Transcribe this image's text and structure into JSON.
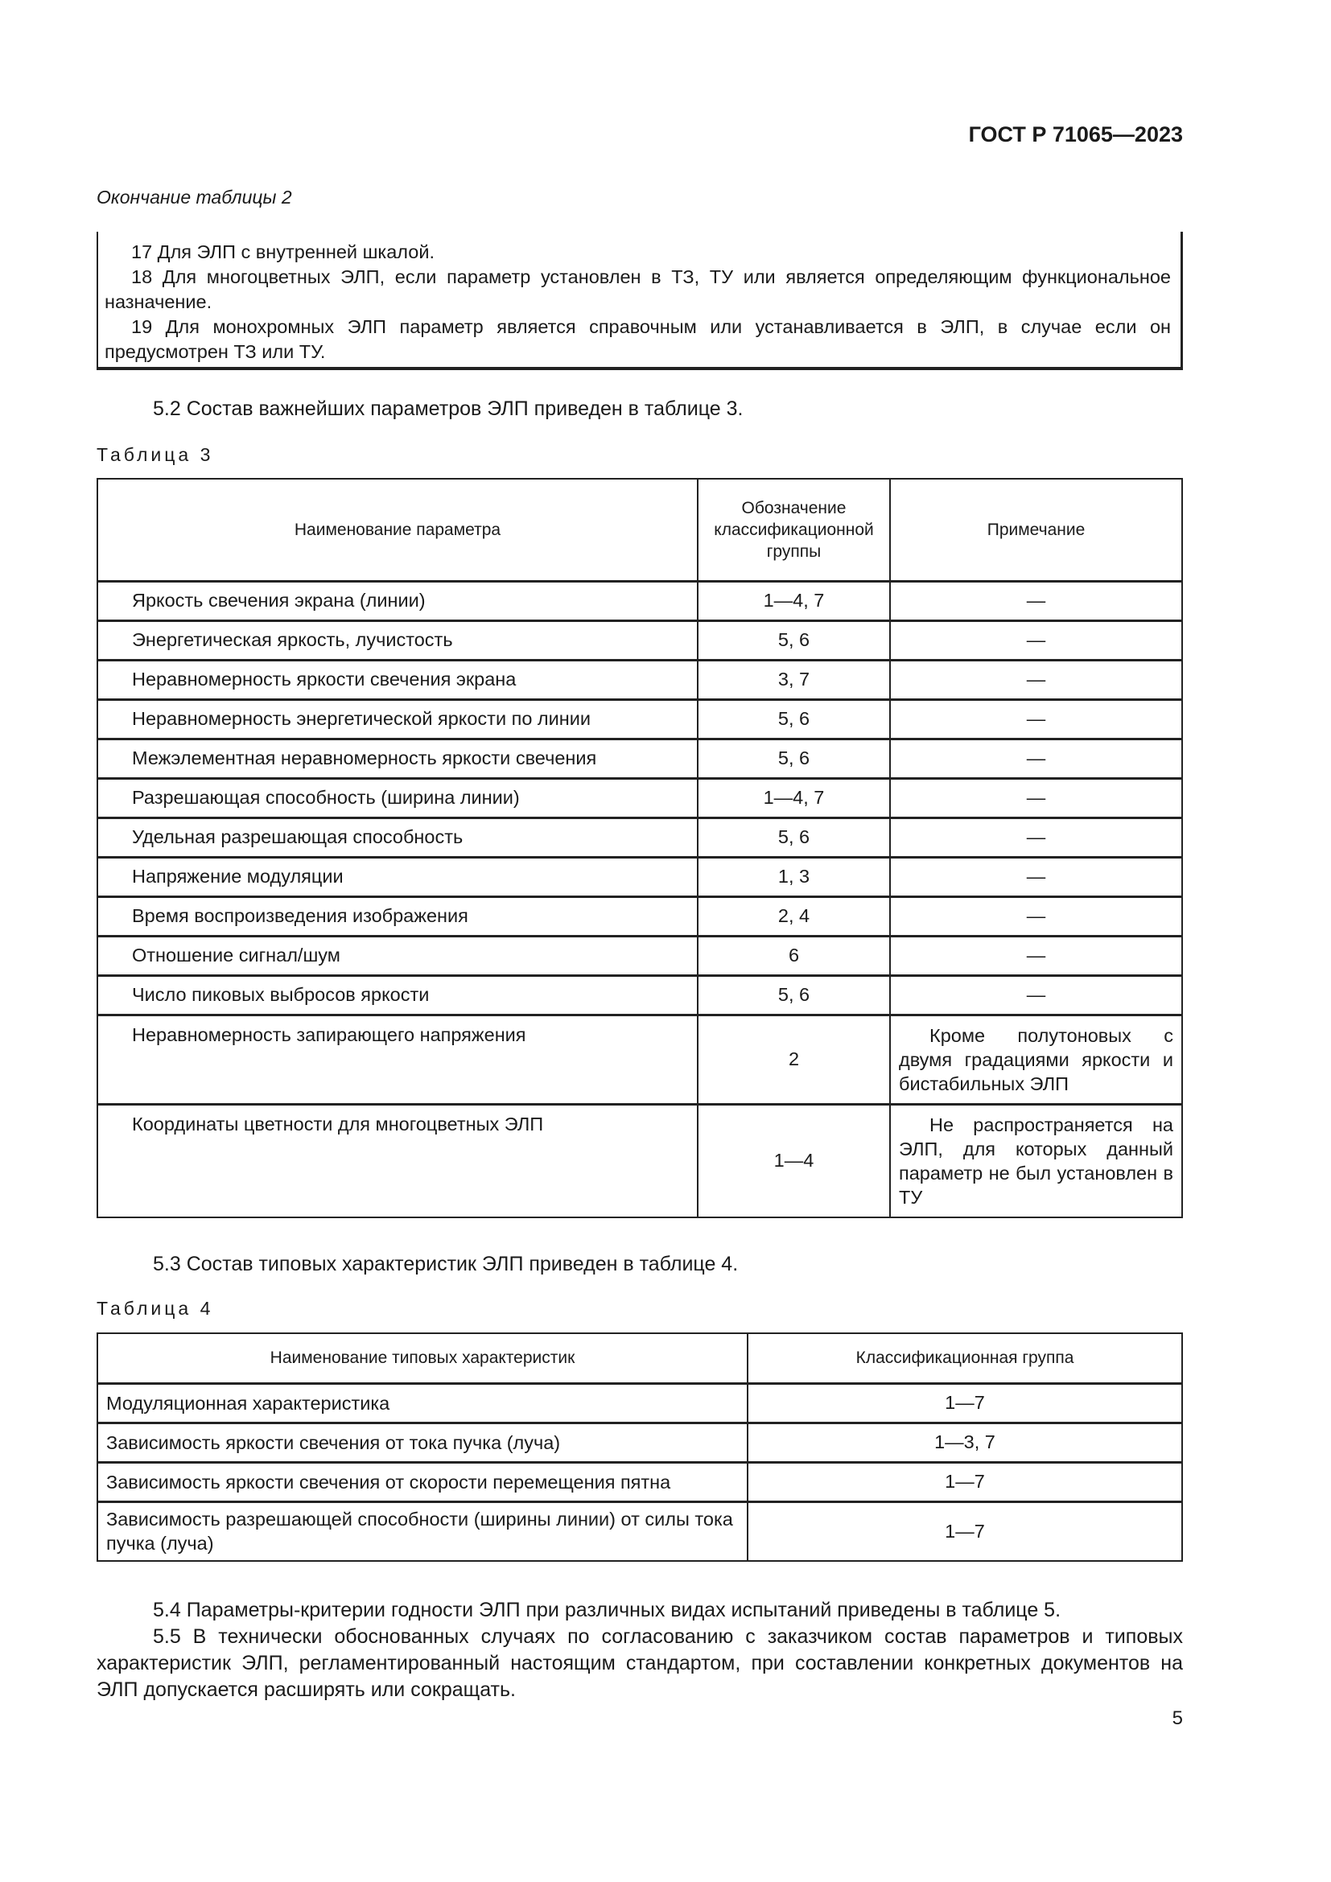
{
  "header": {
    "doc_id": "ГОСТ Р 71065—2023"
  },
  "continuation": "Окончание таблицы 2",
  "table2_notes": [
    "17 Для ЭЛП с внутренней шкалой.",
    "18 Для многоцветных ЭЛП, если параметр установлен в ТЗ, ТУ или является определяющим функциональное назначение.",
    "19 Для монохромных ЭЛП параметр является справочным или устанавливается в ЭЛП, в случае если он предусмотрен ТЗ или ТУ."
  ],
  "p52": "5.2 Состав важнейших параметров ЭЛП приведен в таблице 3.",
  "table3": {
    "caption": "Таблица 3",
    "headers": [
      "Наименование параметра",
      "Обозначение классификационной группы",
      "Примечание"
    ],
    "rows": [
      [
        "Яркость свечения экрана (линии)",
        "1—4, 7",
        "—"
      ],
      [
        "Энергетическая яркость, лучистость",
        "5, 6",
        "—"
      ],
      [
        "Неравномерность яркости свечения экрана",
        "3, 7",
        "—"
      ],
      [
        "Неравномерность энергетической яркости по линии",
        "5, 6",
        "—"
      ],
      [
        "Межэлементная неравномерность яркости свечения",
        "5, 6",
        "—"
      ],
      [
        "Разрешающая способность (ширина линии)",
        "1—4, 7",
        "—"
      ],
      [
        "Удельная разрешающая способность",
        "5, 6",
        "—"
      ],
      [
        "Напряжение модуляции",
        "1, 3",
        "—"
      ],
      [
        "Время воспроизведения изображения",
        "2, 4",
        "—"
      ],
      [
        "Отношение сигнал/шум",
        "6",
        "—"
      ],
      [
        "Число пиковых выбросов яркости",
        "5, 6",
        "—"
      ],
      [
        "Неравномерность запирающего напряжения",
        "2",
        "Кроме полутоновых с двумя градациями яркости и бистабильных ЭЛП"
      ],
      [
        "Координаты цветности для многоцветных ЭЛП",
        "1—4",
        "Не распространяется на ЭЛП, для которых данный параметр не был установлен в ТУ"
      ]
    ]
  },
  "p53": "5.3 Состав типовых характеристик ЭЛП приведен в таблице 4.",
  "table4": {
    "caption": "Таблица 4",
    "headers": [
      "Наименование типовых характеристик",
      "Классификационная группа"
    ],
    "rows": [
      [
        "Модуляционная характеристика",
        "1—7"
      ],
      [
        "Зависимость яркости свечения от тока пучка (луча)",
        "1—3, 7"
      ],
      [
        "Зависимость яркости свечения от скорости перемещения пятна",
        "1—7"
      ],
      [
        "Зависимость разрешающей способности (ширины линии) от силы тока пучка (луча)",
        "1—7"
      ]
    ]
  },
  "p54": "5.4 Параметры-критерии годности ЭЛП при различных видах испытаний приведены в таблице 5.",
  "p55": "5.5 В технически обоснованных случаях по согласованию с заказчиком состав параметров и типовых характеристик ЭЛП, регламентированный настоящим стандартом, при составлении конкретных документов на ЭЛП допускается расширять или сокращать.",
  "page_number": "5"
}
